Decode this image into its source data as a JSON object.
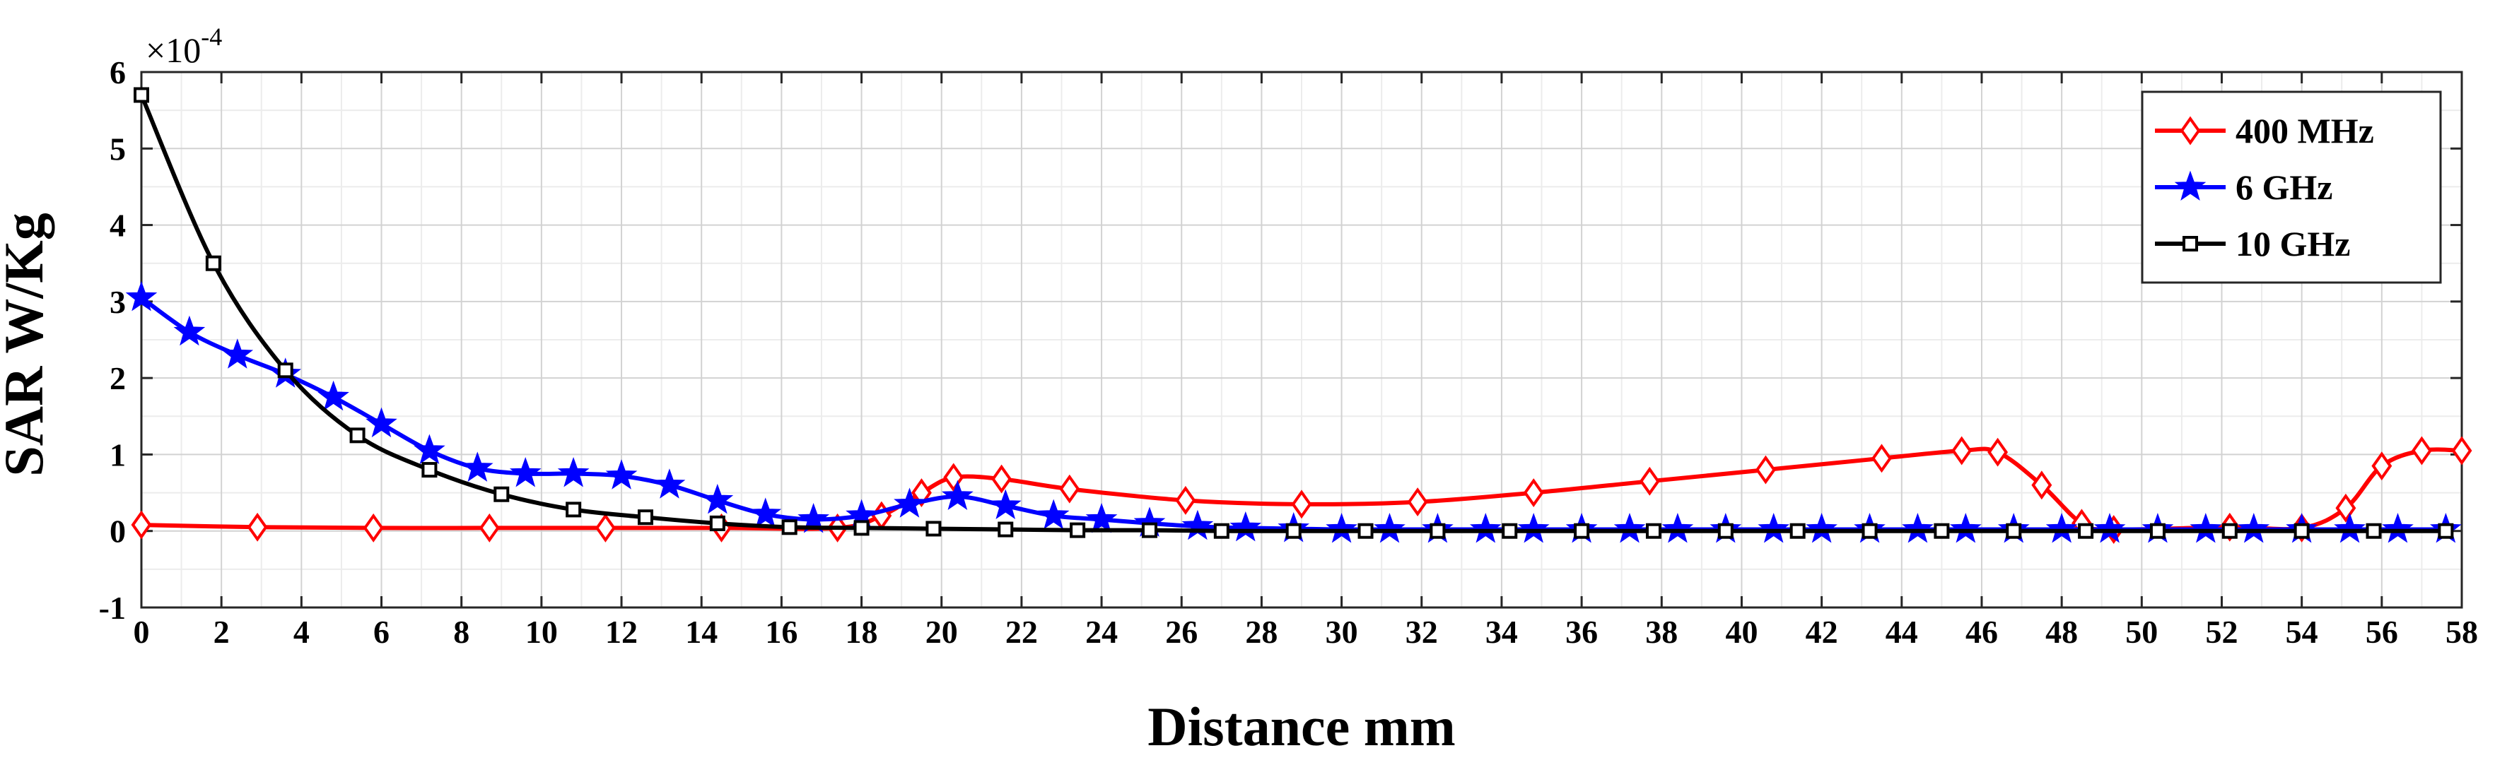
{
  "chart_data": {
    "type": "line",
    "xlabel": "Distance mm",
    "ylabel": "SAR W/Kg",
    "y_multiplier": {
      "base": "×10",
      "exponent": "-4"
    },
    "xlim": [
      0,
      58
    ],
    "ylim": [
      -1,
      6
    ],
    "xticks": [
      0,
      2,
      4,
      6,
      8,
      10,
      12,
      14,
      16,
      18,
      20,
      22,
      24,
      26,
      28,
      30,
      32,
      34,
      36,
      38,
      40,
      42,
      44,
      46,
      48,
      50,
      52,
      54,
      56,
      58
    ],
    "yticks": [
      -1,
      0,
      1,
      2,
      3,
      4,
      5,
      6
    ],
    "grid": true,
    "minor_grid": true,
    "legend_position": "top-right",
    "series": [
      {
        "name": "400 MHz",
        "color": "#ff0000",
        "marker": "diamond",
        "x": [
          0,
          2.9,
          5.8,
          8.7,
          11.6,
          14.5,
          17.4,
          18.5,
          19.5,
          20.3,
          21.5,
          23.2,
          26.1,
          29,
          31.9,
          34.8,
          37.7,
          40.6,
          43.5,
          45.5,
          46.4,
          47.5,
          48.5,
          49.3,
          52.2,
          54,
          55.1,
          56,
          57,
          58
        ],
        "y": [
          0.08,
          0.05,
          0.04,
          0.04,
          0.04,
          0.04,
          0.04,
          0.2,
          0.5,
          0.7,
          0.68,
          0.55,
          0.4,
          0.35,
          0.38,
          0.5,
          0.65,
          0.8,
          0.95,
          1.05,
          1.03,
          0.6,
          0.1,
          0.02,
          0.05,
          0.04,
          0.3,
          0.85,
          1.05,
          1.05
        ]
      },
      {
        "name": "6 GHz",
        "color": "#0000ff",
        "marker": "star",
        "x": [
          0,
          1.2,
          2.4,
          3.6,
          4.8,
          6,
          7.2,
          8.4,
          9.6,
          10.8,
          12,
          13.2,
          14.4,
          15.6,
          16.8,
          18,
          19.2,
          20.4,
          21.6,
          22.8,
          24,
          25.2,
          26.4,
          27.6,
          28.8,
          30,
          31.2,
          32.4,
          33.6,
          34.8,
          36,
          37.2,
          38.4,
          39.6,
          40.8,
          42,
          43.2,
          44.4,
          45.6,
          46.8,
          48,
          49.2,
          50.4,
          51.6,
          52.8,
          54,
          55.2,
          56.4,
          57.6
        ],
        "y": [
          3.05,
          2.6,
          2.3,
          2.05,
          1.75,
          1.4,
          1.05,
          0.82,
          0.75,
          0.75,
          0.72,
          0.6,
          0.4,
          0.22,
          0.15,
          0.2,
          0.35,
          0.45,
          0.33,
          0.2,
          0.15,
          0.1,
          0.06,
          0.04,
          0.03,
          0.02,
          0.02,
          0.02,
          0.02,
          0.02,
          0.02,
          0.02,
          0.02,
          0.02,
          0.02,
          0.02,
          0.02,
          0.02,
          0.02,
          0.02,
          0.02,
          0.02,
          0.02,
          0.02,
          0.02,
          0.02,
          0.02,
          0.02,
          0.02
        ]
      },
      {
        "name": "10 GHz",
        "color": "#000000",
        "marker": "square",
        "x": [
          0,
          1.8,
          3.6,
          5.4,
          7.2,
          9,
          10.8,
          12.6,
          14.4,
          16.2,
          18,
          19.8,
          21.6,
          23.4,
          25.2,
          27,
          28.8,
          30.6,
          32.4,
          34.2,
          36,
          37.8,
          39.6,
          41.4,
          43.2,
          45,
          46.8,
          48.6,
          50.4,
          52.2,
          54,
          55.8,
          57.6
        ],
        "y": [
          5.7,
          3.5,
          2.1,
          1.25,
          0.8,
          0.48,
          0.28,
          0.18,
          0.1,
          0.05,
          0.04,
          0.03,
          0.02,
          0.01,
          0.01,
          0,
          0,
          0,
          0,
          0,
          0,
          0,
          0,
          0,
          0,
          0,
          0,
          0,
          0,
          0,
          0,
          0,
          0
        ]
      }
    ]
  }
}
